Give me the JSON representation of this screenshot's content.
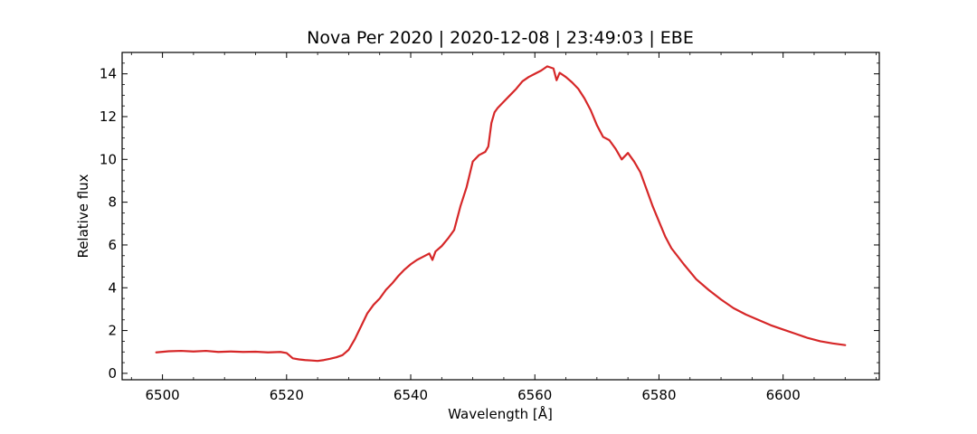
{
  "chart_data": {
    "type": "line",
    "title": "Nova Per 2020 | 2020-12-08 | 23:49:03 | EBE",
    "xlabel": "Wavelength [Å]",
    "ylabel": "Relative flux",
    "xlim": [
      6493.5,
      6615.5
    ],
    "ylim": [
      -0.3,
      15.0
    ],
    "xticks": [
      6500,
      6520,
      6540,
      6560,
      6580,
      6600
    ],
    "yticks": [
      0,
      2,
      4,
      6,
      8,
      10,
      12,
      14
    ],
    "grid": false,
    "line_color": "#d62728",
    "series": [
      {
        "x": [
          6499,
          6501,
          6503,
          6505,
          6507,
          6509,
          6511,
          6513,
          6515,
          6517,
          6519,
          6520,
          6521,
          6522,
          6523,
          6524,
          6525,
          6526,
          6527,
          6528,
          6529,
          6530,
          6531,
          6532,
          6533,
          6534,
          6535,
          6536,
          6537,
          6538,
          6539,
          6540,
          6541,
          6542,
          6543,
          6543.5,
          6544,
          6545,
          6546,
          6547,
          6548,
          6549,
          6549.5,
          6550,
          6551,
          6552,
          6552.5,
          6553,
          6553.5,
          6554,
          6555,
          6556,
          6557,
          6558,
          6559,
          6560,
          6561,
          6562,
          6563,
          6563.5,
          6564,
          6565,
          6566,
          6567,
          6568,
          6569,
          6570,
          6571,
          6572,
          6573,
          6574,
          6575,
          6575.5,
          6576,
          6577,
          6578,
          6579,
          6580,
          6581,
          6582,
          6584,
          6586,
          6588,
          6590,
          6592,
          6594,
          6596,
          6598,
          6600,
          6602,
          6604,
          6606,
          6608,
          6610
        ],
        "y": [
          0.98,
          1.03,
          1.05,
          1.02,
          1.05,
          1.0,
          1.02,
          1.0,
          1.01,
          0.98,
          1.0,
          0.95,
          0.7,
          0.65,
          0.62,
          0.6,
          0.58,
          0.62,
          0.68,
          0.75,
          0.85,
          1.1,
          1.6,
          2.2,
          2.8,
          3.2,
          3.5,
          3.9,
          4.2,
          4.55,
          4.85,
          5.1,
          5.3,
          5.45,
          5.6,
          5.3,
          5.7,
          5.95,
          6.3,
          6.7,
          7.8,
          8.7,
          9.3,
          9.9,
          10.2,
          10.35,
          10.6,
          11.7,
          12.2,
          12.4,
          12.7,
          13.0,
          13.3,
          13.65,
          13.85,
          14.0,
          14.15,
          14.35,
          14.25,
          13.7,
          14.05,
          13.85,
          13.6,
          13.3,
          12.85,
          12.3,
          11.6,
          11.05,
          10.9,
          10.5,
          10.0,
          10.3,
          10.1,
          9.9,
          9.4,
          8.6,
          7.8,
          7.1,
          6.4,
          5.85,
          5.1,
          4.4,
          3.9,
          3.45,
          3.05,
          2.75,
          2.5,
          2.25,
          2.05,
          1.85,
          1.65,
          1.5,
          1.4,
          1.32
        ]
      }
    ]
  }
}
